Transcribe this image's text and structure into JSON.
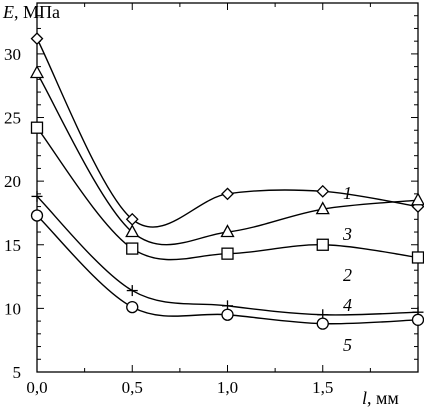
{
  "chart_data": {
    "type": "line",
    "ylabel_symbol": "E",
    "ylabel_unit": ", МПа",
    "xlabel_symbol": "l",
    "xlabel_unit": ", мм",
    "x": [
      0.0,
      0.5,
      1.0,
      1.5,
      2.0
    ],
    "xticks": [
      "0,0",
      "0,5",
      "1,0",
      "1,5"
    ],
    "yticks": [
      "5",
      "10",
      "15",
      "20",
      "25",
      "30"
    ],
    "ylim": [
      5,
      34
    ],
    "xlim": [
      0,
      2.0
    ],
    "grid": false,
    "series": [
      {
        "name": "1",
        "marker": "diamond",
        "values": [
          31.2,
          17.0,
          19.0,
          19.2,
          18.0
        ]
      },
      {
        "name": "3",
        "marker": "triangle",
        "values": [
          28.5,
          16.0,
          16.0,
          17.8,
          18.5
        ]
      },
      {
        "name": "2",
        "marker": "square",
        "values": [
          24.2,
          14.7,
          14.3,
          15.0,
          14.0
        ]
      },
      {
        "name": "4",
        "marker": "cross",
        "values": [
          18.8,
          11.4,
          10.2,
          9.5,
          9.7
        ]
      },
      {
        "name": "5",
        "marker": "circle",
        "values": [
          17.3,
          10.1,
          9.5,
          8.8,
          9.1
        ]
      }
    ]
  }
}
